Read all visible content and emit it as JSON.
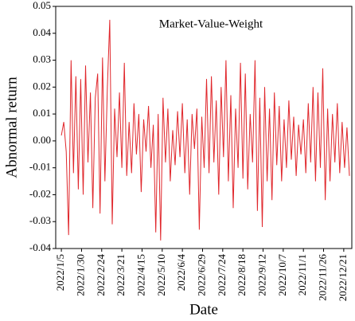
{
  "chart_data": {
    "type": "line",
    "annotation": "Market-Value-Weight",
    "x_label": "Date",
    "y_label": "Abnormal return",
    "color": "#e0262b",
    "x": [
      "2022/1/5",
      "2022/1/8",
      "2022/1/11",
      "2022/1/14",
      "2022/1/17",
      "2022/1/20",
      "2022/1/23",
      "2022/1/26",
      "2022/1/29",
      "2022/2/1",
      "2022/2/4",
      "2022/2/7",
      "2022/2/10",
      "2022/2/13",
      "2022/2/16",
      "2022/2/19",
      "2022/2/22",
      "2022/2/25",
      "2022/2/28",
      "2022/3/3",
      "2022/3/6",
      "2022/3/9",
      "2022/3/12",
      "2022/3/15",
      "2022/3/18",
      "2022/3/21",
      "2022/3/24",
      "2022/3/27",
      "2022/3/30",
      "2022/4/2",
      "2022/4/5",
      "2022/4/8",
      "2022/4/11",
      "2022/4/14",
      "2022/4/17",
      "2022/4/20",
      "2022/4/23",
      "2022/4/26",
      "2022/4/29",
      "2022/5/2",
      "2022/5/5",
      "2022/5/8",
      "2022/5/11",
      "2022/5/14",
      "2022/5/17",
      "2022/5/20",
      "2022/5/23",
      "2022/5/26",
      "2022/5/29",
      "2022/6/1",
      "2022/6/4",
      "2022/6/7",
      "2022/6/10",
      "2022/6/13",
      "2022/6/16",
      "2022/6/19",
      "2022/6/22",
      "2022/6/25",
      "2022/6/28",
      "2022/7/1",
      "2022/7/4",
      "2022/7/7",
      "2022/7/10",
      "2022/7/13",
      "2022/7/16",
      "2022/7/19",
      "2022/7/22",
      "2022/7/25",
      "2022/7/28",
      "2022/7/31",
      "2022/8/3",
      "2022/8/6",
      "2022/8/9",
      "2022/8/12",
      "2022/8/15",
      "2022/8/18",
      "2022/8/21",
      "2022/8/24",
      "2022/8/27",
      "2022/8/30",
      "2022/9/2",
      "2022/9/5",
      "2022/9/8",
      "2022/9/11",
      "2022/9/14",
      "2022/9/17",
      "2022/9/20",
      "2022/9/23",
      "2022/9/26",
      "2022/9/29",
      "2022/10/2",
      "2022/10/5",
      "2022/10/8",
      "2022/10/11",
      "2022/10/14",
      "2022/10/17",
      "2022/10/20",
      "2022/10/23",
      "2022/10/26",
      "2022/10/29",
      "2022/11/1",
      "2022/11/4",
      "2022/11/7",
      "2022/11/10",
      "2022/11/13",
      "2022/11/16",
      "2022/11/19",
      "2022/11/22",
      "2022/11/25",
      "2022/11/28",
      "2022/12/1",
      "2022/12/4",
      "2022/12/7",
      "2022/12/10",
      "2022/12/13",
      "2022/12/16",
      "2022/12/19",
      "2022/12/22",
      "2022/12/25",
      "2022/12/28"
    ],
    "values": [
      0.002,
      0.007,
      -0.004,
      -0.035,
      0.03,
      -0.012,
      0.024,
      -0.018,
      0.023,
      -0.02,
      0.028,
      -0.008,
      0.018,
      -0.025,
      0.016,
      0.025,
      -0.027,
      0.031,
      -0.015,
      0.02,
      0.045,
      -0.031,
      0.012,
      -0.006,
      0.018,
      -0.01,
      0.029,
      -0.013,
      0.007,
      -0.012,
      0.014,
      -0.005,
      0.01,
      -0.019,
      0.008,
      -0.004,
      0.013,
      -0.01,
      0.006,
      -0.034,
      0.01,
      -0.037,
      0.016,
      -0.008,
      0.012,
      -0.015,
      0.004,
      -0.009,
      0.011,
      -0.006,
      0.014,
      -0.012,
      0.008,
      -0.02,
      0.01,
      -0.003,
      0.012,
      -0.033,
      0.009,
      -0.01,
      0.023,
      -0.012,
      0.024,
      -0.008,
      0.015,
      -0.02,
      0.02,
      -0.006,
      0.03,
      -0.015,
      0.017,
      -0.025,
      0.012,
      -0.01,
      0.029,
      -0.014,
      0.025,
      -0.018,
      0.01,
      -0.008,
      0.03,
      -0.026,
      0.016,
      -0.032,
      0.02,
      -0.015,
      0.012,
      -0.022,
      0.018,
      -0.009,
      0.013,
      -0.015,
      0.008,
      -0.01,
      0.015,
      -0.007,
      0.009,
      -0.013,
      0.006,
      -0.005,
      0.008,
      -0.012,
      0.014,
      -0.008,
      0.02,
      -0.015,
      0.018,
      -0.01,
      0.027,
      -0.022,
      0.012,
      -0.015,
      0.01,
      -0.008,
      0.014,
      -0.012,
      0.007,
      -0.01,
      0.005,
      -0.013
    ],
    "xlim": [
      "2021/12/29",
      "2022/12/31"
    ],
    "xticks": [
      "2022/1/5",
      "2022/1/30",
      "2022/2/24",
      "2022/3/21",
      "2022/4/15",
      "2022/5/10",
      "2022/6/4",
      "2022/6/29",
      "2022/7/24",
      "2022/8/18",
      "2022/9/12",
      "2022/10/7",
      "2022/11/1",
      "2022/11/26",
      "2022/12/21"
    ],
    "ylim": [
      -0.04,
      0.05
    ],
    "yticks": [
      -0.04,
      -0.03,
      -0.02,
      -0.01,
      {
        "value": 0,
        "label": "0.00"
      },
      0.01,
      0.02,
      0.03,
      0.04,
      0.05
    ]
  }
}
